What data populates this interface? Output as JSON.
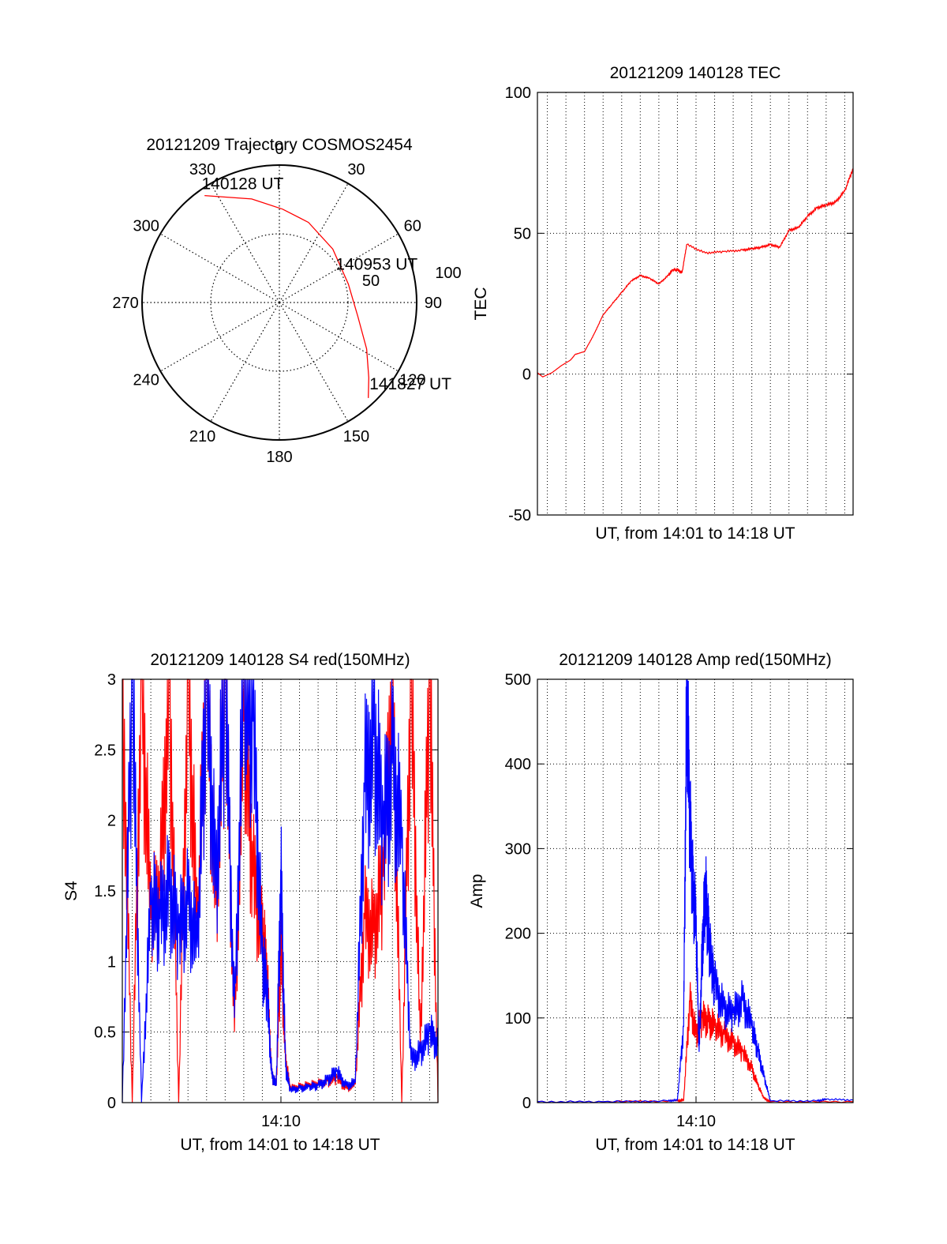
{
  "chart_data": [
    {
      "type": "polar",
      "title": "20121209 Trajectory COSMOS2454",
      "angle_labels": [
        "0",
        "30",
        "60",
        "90",
        "120",
        "150",
        "180",
        "210",
        "240",
        "270",
        "300",
        "330"
      ],
      "radial_labels": [
        "50",
        "100"
      ],
      "rlim": [
        0,
        100
      ],
      "grid": true,
      "series": [
        {
          "color": "#ff0000",
          "points": [
            {
              "az": 325,
              "zenith": 95
            },
            {
              "az": 345,
              "zenith": 78
            },
            {
              "az": 2,
              "zenith": 68
            },
            {
              "az": 20,
              "zenith": 62
            },
            {
              "az": 45,
              "zenith": 55
            },
            {
              "az": 75,
              "zenith": 52
            },
            {
              "az": 100,
              "zenith": 58
            },
            {
              "az": 118,
              "zenith": 72
            },
            {
              "az": 130,
              "zenith": 85
            },
            {
              "az": 137,
              "zenith": 95
            }
          ]
        }
      ],
      "annotations": [
        {
          "text": "140128 UT",
          "az": 328,
          "zenith": 96
        },
        {
          "text": "140953 UT",
          "az": 64,
          "zenith": 52
        },
        {
          "text": "141827 UT",
          "az": 132,
          "zenith": 96
        }
      ]
    },
    {
      "type": "line",
      "title": "20121209 140128 TEC",
      "xlabel": "UT, from 14:01 to 14:18 UT",
      "ylabel": "TEC",
      "xlim": [
        "14:01:28",
        "14:18:27"
      ],
      "ylim": [
        -50,
        100
      ],
      "yticks": [
        -50,
        0,
        50,
        100
      ],
      "grid": true,
      "series": [
        {
          "color": "#ff0000",
          "x": [
            "14:01:28",
            "14:01:45",
            "14:02:15",
            "14:02:45",
            "14:03:15",
            "14:03:30",
            "14:04:00",
            "14:04:30",
            "14:05:00",
            "14:05:30",
            "14:06:00",
            "14:06:30",
            "14:07:00",
            "14:07:30",
            "14:08:00",
            "14:08:30",
            "14:08:45",
            "14:09:00",
            "14:09:15",
            "14:09:30",
            "14:10:30",
            "14:11:30",
            "14:12:30",
            "14:13:00",
            "14:13:30",
            "14:14:00",
            "14:14:30",
            "14:15:00",
            "14:15:30",
            "14:16:00",
            "14:16:30",
            "14:17:00",
            "14:17:30",
            "14:18:00",
            "14:18:27"
          ],
          "values": [
            0.5,
            -1,
            0.5,
            3,
            5,
            7,
            8,
            14,
            21,
            25,
            29,
            33,
            35,
            34,
            32,
            35,
            37,
            37,
            36,
            46,
            43,
            43.5,
            44,
            44.5,
            45,
            46,
            45,
            51,
            52,
            56,
            59,
            60,
            61,
            65,
            73
          ]
        }
      ]
    },
    {
      "type": "line",
      "title": "20121209 140128 S4 red(150MHz)",
      "xlabel": "UT, from 14:01 to 14:18 UT",
      "ylabel": "S4",
      "xtick_labels": [
        "14:10"
      ],
      "ylim": [
        0,
        3
      ],
      "yticks": [
        "0",
        "0.5",
        "1",
        "1.5",
        "2",
        "2.5",
        "3"
      ],
      "grid": true,
      "series": [
        {
          "color": "#ff0000",
          "x": [
            "14:01:28",
            "14:02:00",
            "14:02:30",
            "14:03:00",
            "14:03:30",
            "14:04:00",
            "14:04:30",
            "14:05:00",
            "14:05:30",
            "14:06:00",
            "14:06:30",
            "14:07:00",
            "14:07:30",
            "14:08:00",
            "14:08:30",
            "14:09:00",
            "14:09:15",
            "14:09:30",
            "14:09:45",
            "14:10:00",
            "14:10:15",
            "14:10:30",
            "14:11:00",
            "14:11:30",
            "14:12:00",
            "14:12:30",
            "14:13:00",
            "14:13:30",
            "14:14:00",
            "14:14:30",
            "14:15:00",
            "14:15:30",
            "14:16:00",
            "14:16:30",
            "14:17:00",
            "14:17:30",
            "14:18:00",
            "14:18:27"
          ],
          "values": [
            3,
            0,
            3,
            1.3,
            1.5,
            3,
            0,
            3,
            1.2,
            3,
            1.4,
            3,
            0.5,
            2.7,
            1.6,
            1.2,
            0.9,
            0.2,
            0.12,
            1.1,
            0.3,
            0.1,
            0.11,
            0.12,
            0.13,
            0.15,
            0.18,
            0.1,
            0.13,
            1.3,
            1.2,
            1.6,
            3,
            0,
            3,
            0.4,
            3,
            0
          ]
        },
        {
          "color": "#0000ff",
          "x": [
            "14:01:28",
            "14:02:00",
            "14:02:30",
            "14:03:00",
            "14:03:30",
            "14:04:00",
            "14:04:30",
            "14:05:00",
            "14:05:30",
            "14:06:00",
            "14:06:30",
            "14:07:00",
            "14:07:30",
            "14:08:00",
            "14:08:30",
            "14:09:00",
            "14:09:15",
            "14:09:30",
            "14:09:45",
            "14:10:00",
            "14:10:15",
            "14:10:30",
            "14:11:00",
            "14:11:30",
            "14:12:00",
            "14:12:30",
            "14:13:00",
            "14:13:30",
            "14:14:00",
            "14:14:30",
            "14:15:00",
            "14:15:30",
            "14:16:00",
            "14:16:30",
            "14:17:00",
            "14:17:30",
            "14:18:00",
            "14:18:27"
          ],
          "values": [
            0,
            3,
            0,
            1.4,
            1.3,
            1.5,
            1.2,
            1.4,
            1.1,
            3,
            1.5,
            3,
            0.6,
            3,
            2.7,
            1.0,
            0.8,
            0.2,
            0.12,
            1.6,
            0.25,
            0.09,
            0.1,
            0.11,
            0.12,
            0.16,
            0.22,
            0.12,
            0.14,
            2.2,
            2.6,
            1.9,
            2.4,
            1.8,
            0.3,
            0.35,
            0.5,
            0.4
          ]
        }
      ]
    },
    {
      "type": "line",
      "title": "20121209 140128 Amp red(150MHz)",
      "xlabel": "UT, from 14:01 to 14:18 UT",
      "ylabel": "Amp",
      "xtick_labels": [
        "14:10"
      ],
      "ylim": [
        0,
        500
      ],
      "yticks": [
        0,
        100,
        200,
        300,
        400,
        500
      ],
      "grid": true,
      "series": [
        {
          "color": "#ff0000",
          "x": [
            "14:01:28",
            "14:05:00",
            "14:09:00",
            "14:09:20",
            "14:09:40",
            "14:10:00",
            "14:10:20",
            "14:10:40",
            "14:11:00",
            "14:11:30",
            "14:12:00",
            "14:12:30",
            "14:13:00",
            "14:13:20",
            "14:13:40",
            "14:14:00",
            "14:18:27"
          ],
          "values": [
            1,
            1,
            2,
            3,
            120,
            80,
            100,
            95,
            90,
            80,
            70,
            60,
            40,
            20,
            5,
            1,
            1
          ]
        },
        {
          "color": "#0000ff",
          "x": [
            "14:01:28",
            "14:05:00",
            "14:08:30",
            "14:09:00",
            "14:09:20",
            "14:09:30",
            "14:09:40",
            "14:09:50",
            "14:10:00",
            "14:10:10",
            "14:10:20",
            "14:10:30",
            "14:10:40",
            "14:10:50",
            "14:11:00",
            "14:11:30",
            "14:12:00",
            "14:12:30",
            "14:13:00",
            "14:13:20",
            "14:13:40",
            "14:14:00",
            "14:16:30",
            "14:17:00",
            "14:18:27"
          ],
          "values": [
            1,
            1,
            2,
            3,
            90,
            490,
            330,
            250,
            210,
            60,
            180,
            250,
            200,
            160,
            140,
            110,
            105,
            120,
            90,
            60,
            30,
            2,
            2,
            4,
            3
          ]
        }
      ]
    }
  ]
}
